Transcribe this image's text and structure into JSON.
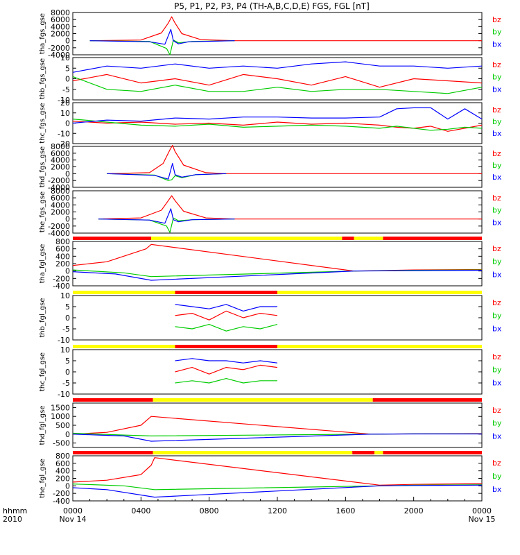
{
  "title": "P5, P1, P2, P3, P4 (TH-A,B,C,D,E) FGS, FGL [nT]",
  "legend": {
    "items": [
      {
        "name": "bz",
        "color": "#ff0000"
      },
      {
        "name": "by",
        "color": "#00cc00"
      },
      {
        "name": "bx",
        "color": "#0000ff"
      }
    ]
  },
  "time_axis": {
    "row_label_1": "hhmm",
    "row_label_2": "2010",
    "ticks": [
      "0400",
      "0800",
      "1200",
      "1600",
      "2000"
    ],
    "start_label": [
      "0000",
      "Nov 14"
    ],
    "end_label": [
      "0000",
      "Nov 15"
    ],
    "range_hours": [
      0,
      24
    ]
  },
  "colors": {
    "bz": "#ff0000",
    "by": "#00cc00",
    "bx": "#0000ff",
    "bar_fast": "#ff0000",
    "bar_slow": "#ffff00",
    "bar_mark": "#000000"
  },
  "chart_data": [
    {
      "type": "line",
      "ylabel": "tha_fgs_gse",
      "ylim": [
        -4000,
        8000
      ],
      "ytick_labels": [
        "8000",
        "6000",
        "4000",
        "2000",
        "0",
        "-2000",
        "-4000"
      ],
      "series": [
        {
          "name": "bz",
          "x": [
            1.0,
            4.0,
            5.2,
            5.6,
            5.8,
            6.0,
            6.4,
            7.5,
            9.5,
            24.0
          ],
          "values": [
            0,
            200,
            2200,
            5000,
            6800,
            5000,
            2000,
            300,
            0,
            0
          ]
        },
        {
          "name": "by",
          "x": [
            1.0,
            4.5,
            5.5,
            5.7,
            5.9,
            6.2,
            7.0,
            9.5
          ],
          "values": [
            0,
            -200,
            -2200,
            -4000,
            200,
            -600,
            -200,
            0
          ]
        },
        {
          "name": "bx",
          "x": [
            1.0,
            4.5,
            5.4,
            5.75,
            5.9,
            6.2,
            6.8,
            9.5
          ],
          "values": [
            0,
            -300,
            -1000,
            3200,
            0,
            -900,
            -300,
            0
          ]
        }
      ]
    },
    {
      "type": "line",
      "ylabel": "thb_fgs_gse",
      "ylim": [
        -10,
        10
      ],
      "ytick_labels": [
        "10",
        "5",
        "0",
        "-5",
        "-10"
      ],
      "series": [
        {
          "name": "bz",
          "x": [
            0,
            2,
            4,
            6,
            8,
            10,
            12,
            14,
            16,
            18,
            20,
            22,
            24
          ],
          "values": [
            -1,
            2,
            -2,
            0,
            -3,
            2,
            0,
            -3,
            1,
            -4,
            0,
            -1,
            -2
          ]
        },
        {
          "name": "by",
          "x": [
            0,
            2,
            4,
            6,
            8,
            10,
            12,
            14,
            16,
            18,
            20,
            22,
            24
          ],
          "values": [
            1,
            -5,
            -6,
            -3,
            -6,
            -6,
            -4,
            -6,
            -5,
            -5,
            -6,
            -7,
            -4
          ]
        },
        {
          "name": "bx",
          "x": [
            0,
            2,
            4,
            6,
            8,
            10,
            12,
            14,
            16,
            18,
            20,
            22,
            24
          ],
          "values": [
            3,
            6,
            5,
            7,
            5,
            6,
            5,
            7,
            8,
            6,
            6,
            5,
            6
          ]
        }
      ]
    },
    {
      "type": "line",
      "ylabel": "thc_fgs_gse",
      "ylim": [
        -20,
        20
      ],
      "ytick_labels": [
        "20",
        "10",
        "0",
        "-10",
        "-20"
      ],
      "series": [
        {
          "name": "bz",
          "x": [
            0,
            2,
            4,
            6,
            8,
            10,
            12,
            14,
            16,
            18,
            19,
            20,
            21,
            22,
            23,
            24
          ],
          "values": [
            2,
            0,
            1,
            -1,
            0,
            -2,
            1,
            -1,
            0,
            -2,
            -4,
            -5,
            -3,
            -8,
            -5,
            -2
          ]
        },
        {
          "name": "by",
          "x": [
            0,
            2,
            4,
            6,
            8,
            10,
            12,
            14,
            16,
            18,
            19,
            20,
            21,
            22,
            23,
            24
          ],
          "values": [
            4,
            1,
            -2,
            -3,
            -1,
            -4,
            -3,
            -2,
            -3,
            -5,
            -3,
            -5,
            -7,
            -6,
            -4,
            -5
          ]
        },
        {
          "name": "bx",
          "x": [
            0,
            2,
            4,
            6,
            8,
            10,
            12,
            14,
            16,
            18,
            19,
            20,
            21,
            22,
            23,
            24
          ],
          "values": [
            0,
            3,
            2,
            5,
            4,
            6,
            6,
            5,
            5,
            6,
            14,
            15,
            15,
            4,
            14,
            4
          ]
        }
      ]
    },
    {
      "type": "line",
      "ylabel": "thd_fgs_gse",
      "ylim": [
        -4000,
        8000
      ],
      "ytick_labels": [
        "8000",
        "6000",
        "4000",
        "2000",
        "0",
        "-2000",
        "-4000"
      ],
      "series": [
        {
          "name": "bz",
          "x": [
            2.0,
            4.5,
            5.3,
            5.7,
            5.85,
            6.0,
            6.5,
            7.8,
            9.0,
            24.0
          ],
          "values": [
            0,
            300,
            3000,
            7000,
            8300,
            6500,
            2500,
            300,
            0,
            0
          ]
        },
        {
          "name": "by",
          "x": [
            2.0,
            4.8,
            5.6,
            5.8,
            6.0,
            6.4,
            7.2,
            9.0
          ],
          "values": [
            0,
            -400,
            -2000,
            -1800,
            -600,
            -1200,
            -300,
            0
          ]
        },
        {
          "name": "bx",
          "x": [
            2.0,
            4.8,
            5.6,
            5.85,
            6.0,
            6.4,
            7.2,
            9.0
          ],
          "values": [
            0,
            -500,
            -1600,
            3000,
            -300,
            -1000,
            -300,
            0
          ]
        }
      ]
    },
    {
      "type": "line",
      "ylabel": "the_fgs_gse",
      "ylim": [
        -4000,
        8000
      ],
      "ytick_labels": [
        "8000",
        "6000",
        "4000",
        "2000",
        "0",
        "-2000",
        "-4000"
      ],
      "series": [
        {
          "name": "bz",
          "x": [
            1.5,
            4.0,
            5.2,
            5.6,
            5.8,
            6.0,
            6.5,
            7.8,
            9.5,
            24.0
          ],
          "values": [
            0,
            300,
            2500,
            5200,
            6600,
            5200,
            2200,
            300,
            0,
            0
          ]
        },
        {
          "name": "by",
          "x": [
            1.5,
            4.5,
            5.5,
            5.7,
            5.9,
            6.2,
            7.0,
            9.5
          ],
          "values": [
            0,
            -300,
            -2000,
            -3800,
            300,
            -500,
            -200,
            0
          ]
        },
        {
          "name": "bx",
          "x": [
            1.5,
            4.5,
            5.4,
            5.75,
            5.9,
            6.2,
            7.0,
            9.5
          ],
          "values": [
            0,
            -300,
            -1200,
            2900,
            -200,
            -800,
            -200,
            0
          ]
        }
      ]
    },
    {
      "type": "line",
      "ylabel": "tha_fgl_gse",
      "ylim": [
        -400,
        800
      ],
      "ytick_labels": [
        "800",
        "600",
        "400",
        "200",
        "0",
        "-200",
        "-400"
      ],
      "series": [
        {
          "name": "bz",
          "x": [
            0,
            2,
            4.3,
            4.6,
            16.5,
            20,
            24
          ],
          "values": [
            150,
            250,
            600,
            720,
            0,
            30,
            40
          ]
        },
        {
          "name": "by",
          "x": [
            0,
            3,
            4.6,
            16.5,
            20,
            24
          ],
          "values": [
            30,
            -50,
            -150,
            0,
            20,
            30
          ]
        },
        {
          "name": "bx",
          "x": [
            0,
            2.5,
            4.6,
            16.5,
            20,
            24
          ],
          "values": [
            -20,
            -80,
            -250,
            0,
            10,
            20
          ]
        }
      ]
    },
    {
      "type": "line",
      "ylabel": "thb_fgl_gse",
      "ylim": [
        -10,
        10
      ],
      "ytick_labels": [
        "10",
        "5",
        "0",
        "-5",
        "-10"
      ],
      "series": [
        {
          "name": "bz",
          "x": [
            6,
            7,
            8,
            9,
            10,
            11,
            12
          ],
          "values": [
            1,
            2,
            -1,
            3,
            0,
            2,
            1
          ]
        },
        {
          "name": "by",
          "x": [
            6,
            7,
            8,
            9,
            10,
            11,
            12
          ],
          "values": [
            -4,
            -5,
            -3,
            -6,
            -4,
            -5,
            -3
          ]
        },
        {
          "name": "bx",
          "x": [
            6,
            7,
            8,
            9,
            10,
            11,
            12
          ],
          "values": [
            6,
            5,
            4,
            6,
            3,
            5,
            5
          ]
        }
      ]
    },
    {
      "type": "line",
      "ylabel": "thc_fgl_gse",
      "ylim": [
        -10,
        10
      ],
      "ytick_labels": [
        "10",
        "5",
        "0",
        "-5",
        "-10"
      ],
      "series": [
        {
          "name": "bz",
          "x": [
            6,
            7,
            8,
            9,
            10,
            11,
            12
          ],
          "values": [
            0,
            2,
            -1,
            2,
            1,
            3,
            2
          ]
        },
        {
          "name": "by",
          "x": [
            6,
            7,
            8,
            9,
            10,
            11,
            12
          ],
          "values": [
            -5,
            -4,
            -5,
            -3,
            -5,
            -4,
            -4
          ]
        },
        {
          "name": "bx",
          "x": [
            6,
            7,
            8,
            9,
            10,
            11,
            12
          ],
          "values": [
            5,
            6,
            5,
            5,
            4,
            5,
            4
          ]
        }
      ]
    },
    {
      "type": "line",
      "ylabel": "thd_fgl_gse",
      "ylim": [
        -750,
        1750
      ],
      "ytick_labels": [
        "1500",
        "1000",
        "500",
        "0",
        "-500"
      ],
      "series": [
        {
          "name": "bz",
          "x": [
            0,
            2,
            4,
            4.6,
            17.5,
            20,
            24
          ],
          "values": [
            0,
            100,
            500,
            1000,
            0,
            20,
            30
          ]
        },
        {
          "name": "by",
          "x": [
            0,
            3,
            4.6,
            17.5,
            20,
            24
          ],
          "values": [
            50,
            -50,
            -100,
            0,
            20,
            20
          ]
        },
        {
          "name": "bx",
          "x": [
            0,
            1.5,
            3,
            4.6,
            17.5,
            20,
            24
          ],
          "values": [
            0,
            -50,
            -100,
            -400,
            0,
            10,
            10
          ]
        }
      ]
    },
    {
      "type": "line",
      "ylabel": "the_fgl_gse",
      "ylim": [
        -400,
        800
      ],
      "ytick_labels": [
        "800",
        "600",
        "400",
        "200",
        "0",
        "-200",
        "-400"
      ],
      "series": [
        {
          "name": "bz",
          "x": [
            0,
            2,
            4,
            4.6,
            4.8,
            18,
            20,
            24
          ],
          "values": [
            100,
            150,
            300,
            550,
            750,
            20,
            40,
            60
          ]
        },
        {
          "name": "by",
          "x": [
            0,
            3,
            4.8,
            18,
            20,
            24
          ],
          "values": [
            50,
            0,
            -100,
            0,
            20,
            30
          ]
        },
        {
          "name": "bx",
          "x": [
            0,
            2,
            4.8,
            18,
            20,
            24
          ],
          "values": [
            -50,
            -100,
            -300,
            0,
            10,
            20
          ]
        }
      ]
    }
  ],
  "mode_bars": [
    {
      "segments": [
        {
          "from": 0,
          "to": 4.6,
          "color": "red"
        },
        {
          "from": 4.6,
          "to": 15.8,
          "color": "yellow"
        },
        {
          "from": 15.8,
          "to": 16.5,
          "color": "red"
        },
        {
          "from": 16.5,
          "to": 18.2,
          "color": "yellow"
        },
        {
          "from": 18.2,
          "to": 24,
          "color": "red"
        }
      ]
    },
    {
      "segments": [
        {
          "from": 0,
          "to": 6.0,
          "color": "yellow"
        },
        {
          "from": 6.0,
          "to": 12.0,
          "color": "red"
        },
        {
          "from": 12.0,
          "to": 24,
          "color": "yellow"
        }
      ]
    },
    {
      "segments": [
        {
          "from": 0,
          "to": 6.0,
          "color": "yellow"
        },
        {
          "from": 6.0,
          "to": 12.0,
          "color": "red"
        },
        {
          "from": 12.0,
          "to": 24,
          "color": "yellow"
        }
      ]
    },
    {
      "segments": [
        {
          "from": 0,
          "to": 4.7,
          "color": "red"
        },
        {
          "from": 4.7,
          "to": 17.6,
          "color": "yellow"
        },
        {
          "from": 17.6,
          "to": 24,
          "color": "red"
        }
      ]
    },
    {
      "segments": [
        {
          "from": 0,
          "to": 4.7,
          "color": "red"
        },
        {
          "from": 4.7,
          "to": 16.4,
          "color": "yellow"
        },
        {
          "from": 16.4,
          "to": 17.7,
          "color": "red"
        },
        {
          "from": 17.7,
          "to": 18.2,
          "color": "yellow"
        },
        {
          "from": 18.2,
          "to": 24,
          "color": "red"
        }
      ]
    }
  ]
}
